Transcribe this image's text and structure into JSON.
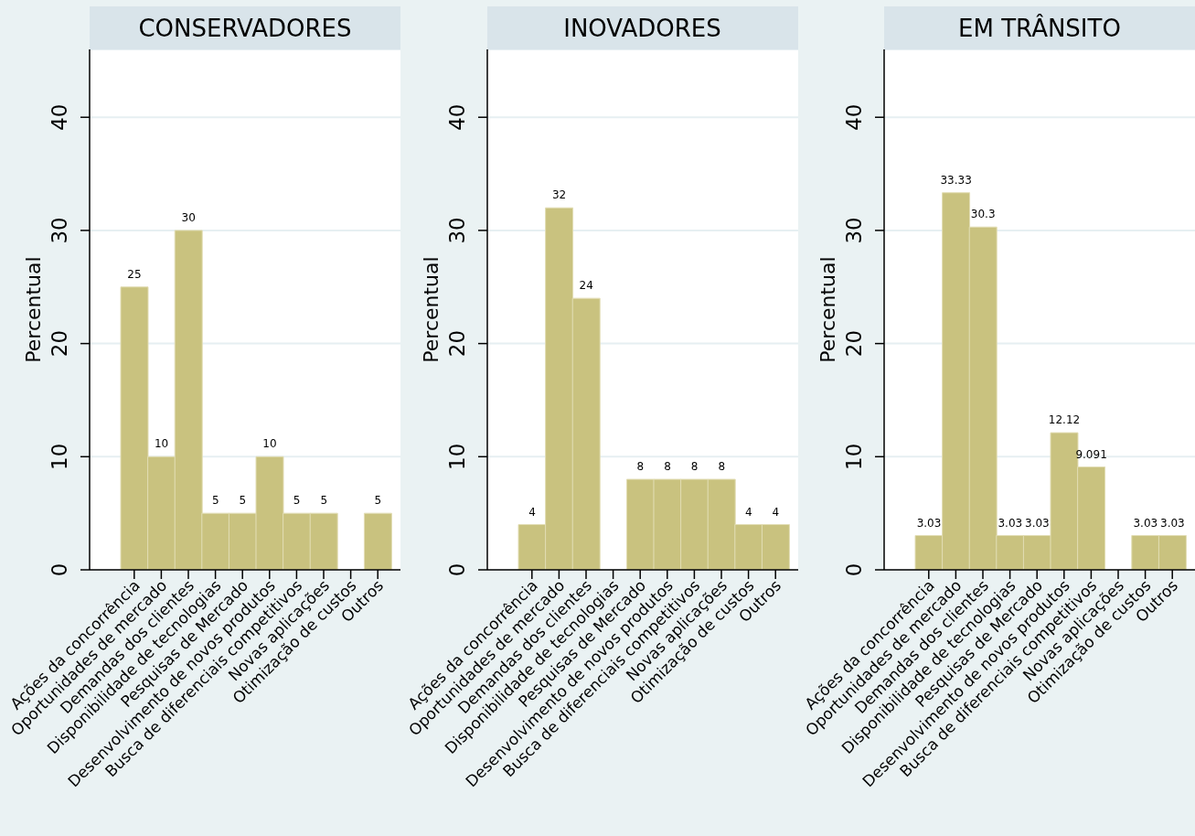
{
  "chart_data": [
    {
      "type": "bar",
      "title": "CONSERVADORES",
      "ylabel": "Percentual",
      "categories": [
        "Ações da concorrência",
        "Oportunidades de mercado",
        "Demandas dos clientes",
        "Disponibilidade de tecnologias",
        "Pesquisas de Mercado",
        "Desenvolvimento de novos produtos",
        "Busca de diferenciais competitivos",
        "Novas aplicações",
        "Otimização de custos",
        "Outros"
      ],
      "values": [
        25,
        10,
        30,
        5,
        5,
        10,
        5,
        5,
        null,
        5
      ],
      "color": "#c9c27f",
      "ylim": [
        0,
        46
      ],
      "yticks": [
        0,
        10,
        20,
        30,
        40
      ],
      "grid": "y",
      "data_labels": true
    },
    {
      "type": "bar",
      "title": "INOVADORES",
      "ylabel": "Percentual",
      "categories": [
        "Ações da concorrência",
        "Oportunidades de mercado",
        "Demandas dos clientes",
        "Disponibilidade de tecnologias",
        "Pesquisas de Mercado",
        "Desenvolvimento de novos produtos",
        "Busca de diferenciais competitivos",
        "Novas aplicações",
        "Otimização de custos",
        "Outros"
      ],
      "values": [
        4,
        32,
        24,
        null,
        8,
        8,
        8,
        8,
        4,
        4
      ],
      "color": "#c9c27f",
      "ylim": [
        0,
        46
      ],
      "yticks": [
        0,
        10,
        20,
        30,
        40
      ],
      "grid": "y",
      "data_labels": true
    },
    {
      "type": "bar",
      "title": "EM TRÂNSITO",
      "ylabel": "Percentual",
      "categories": [
        "Ações da concorrência",
        "Oportunidades de mercado",
        "Demandas dos clientes",
        "Disponibilidade de tecnologias",
        "Pesquisas de Mercado",
        "Desenvolvimento de novos produtos",
        "Busca de diferenciais competitivos",
        "Novas aplicações",
        "Otimização de custos",
        "Outros"
      ],
      "values": [
        3.03,
        33.33,
        30.3,
        3.03,
        3.03,
        12.12,
        9.091,
        null,
        3.03,
        3.03
      ],
      "color": "#c9c27f",
      "ylim": [
        0,
        46
      ],
      "yticks": [
        0,
        10,
        20,
        30,
        40
      ],
      "grid": "y",
      "data_labels": true
    }
  ]
}
